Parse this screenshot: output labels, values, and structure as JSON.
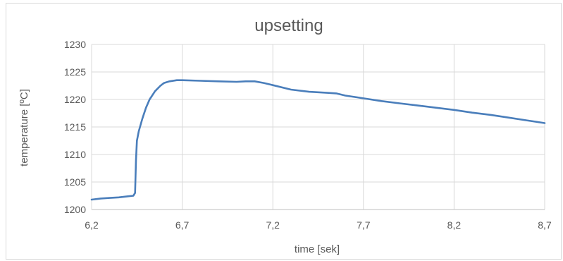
{
  "chart_data": {
    "type": "line",
    "title": "upsetting",
    "xlabel": "time [sek]",
    "ylabel": "temperature [ºC]",
    "xlim": [
      6.2,
      8.7
    ],
    "ylim": [
      1200,
      1230
    ],
    "x_ticks": [
      "6,2",
      "6,7",
      "7,2",
      "7,7",
      "8,2",
      "8,7"
    ],
    "y_ticks": [
      "1200",
      "1205",
      "1210",
      "1215",
      "1220",
      "1225",
      "1230"
    ],
    "grid": true,
    "legend": "none",
    "series": [
      {
        "color": "#4a7ebb",
        "x": [
          6.2,
          6.25,
          6.3,
          6.35,
          6.4,
          6.43,
          6.44,
          6.445,
          6.45,
          6.46,
          6.48,
          6.5,
          6.52,
          6.55,
          6.58,
          6.6,
          6.63,
          6.67,
          6.7,
          6.8,
          6.9,
          7.0,
          7.05,
          7.1,
          7.15,
          7.2,
          7.3,
          7.4,
          7.5,
          7.55,
          7.6,
          7.7,
          7.8,
          7.9,
          8.0,
          8.1,
          8.2,
          8.3,
          8.4,
          8.5,
          8.6,
          8.7
        ],
        "y": [
          1201.8,
          1202.0,
          1202.1,
          1202.2,
          1202.4,
          1202.5,
          1203.0,
          1209.0,
          1212.5,
          1214.2,
          1216.5,
          1218.5,
          1220.0,
          1221.5,
          1222.5,
          1223.0,
          1223.3,
          1223.5,
          1223.5,
          1223.4,
          1223.3,
          1223.2,
          1223.3,
          1223.3,
          1223.0,
          1222.6,
          1221.8,
          1221.4,
          1221.2,
          1221.1,
          1220.7,
          1220.2,
          1219.7,
          1219.3,
          1218.9,
          1218.5,
          1218.1,
          1217.6,
          1217.2,
          1216.7,
          1216.2,
          1215.7
        ]
      }
    ]
  }
}
